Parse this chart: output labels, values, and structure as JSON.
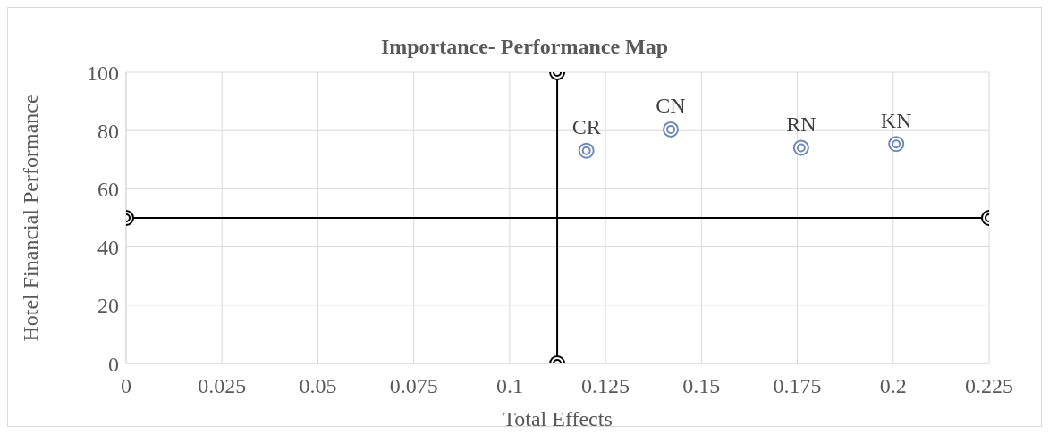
{
  "chart_data": {
    "type": "scatter",
    "title": "Importance- Performance Map",
    "xlabel": "Total Effects",
    "ylabel": "Hotel Financial Performance",
    "xlim": [
      0,
      0.225
    ],
    "xticks": [
      0,
      0.025,
      0.05,
      0.075,
      0.1,
      0.125,
      0.15,
      0.175,
      0.2,
      0.225
    ],
    "ylim": [
      0,
      100
    ],
    "yticks": [
      0,
      20,
      40,
      60,
      80,
      100
    ],
    "grid": true,
    "legend": false,
    "marker": "circle",
    "series": [
      {
        "type": "line",
        "color": "#000000",
        "x": [
          0,
          0.225
        ],
        "values": [
          50,
          50
        ]
      },
      {
        "type": "line",
        "color": "#000000",
        "x": [
          0.1124,
          0.1124
        ],
        "values": [
          0,
          100
        ]
      },
      {
        "name": "CR",
        "color": "#6f8ab7",
        "x": [
          0.12
        ],
        "values": [
          73.1
        ]
      },
      {
        "name": "CN",
        "color": "#6f8ab7",
        "x": [
          0.142
        ],
        "values": [
          80.4
        ]
      },
      {
        "name": "RN",
        "color": "#6f8ab7",
        "x": [
          0.176
        ],
        "values": [
          74.1
        ]
      },
      {
        "name": "KN",
        "color": "#6f8ab7",
        "x": [
          0.2008
        ],
        "values": [
          75.4
        ]
      }
    ]
  }
}
